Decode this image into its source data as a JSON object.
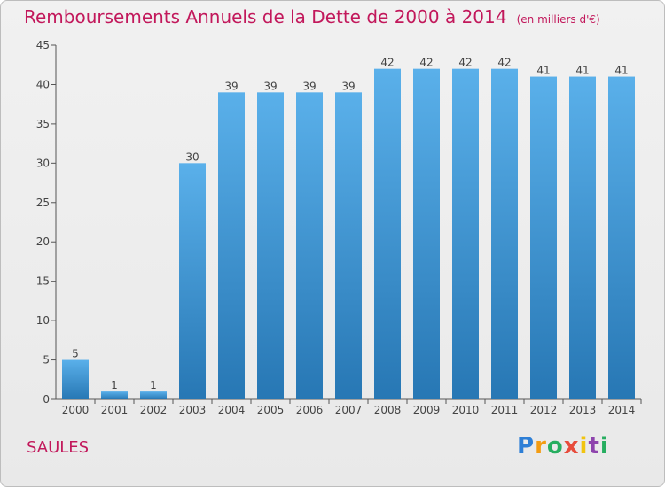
{
  "title": "Remboursements Annuels de la Dette de 2000 à 2014",
  "unit": "(en milliers d'€)",
  "place": "SAULES",
  "logo": {
    "letters": [
      "P",
      "r",
      "o",
      "x",
      "i",
      "t",
      "i"
    ],
    "colors": [
      "#2e7fd6",
      "#f39c12",
      "#27ae60",
      "#e74c3c",
      "#f1c40f",
      "#8e44ad",
      "#27ae60"
    ]
  },
  "colors": {
    "title": "#c2185b",
    "bar_top": "#5ab0ea",
    "bar_bottom": "#2777b4",
    "axis": "#555555"
  },
  "chart_data": {
    "type": "bar",
    "categories": [
      "2000",
      "2001",
      "2002",
      "2003",
      "2004",
      "2005",
      "2006",
      "2007",
      "2008",
      "2009",
      "2010",
      "2011",
      "2012",
      "2013",
      "2014"
    ],
    "values": [
      5,
      1,
      1,
      30,
      39,
      39,
      39,
      39,
      42,
      42,
      42,
      42,
      41,
      41,
      41
    ],
    "ylim": [
      0,
      45
    ],
    "yticks": [
      0,
      5,
      10,
      15,
      20,
      25,
      30,
      35,
      40,
      45
    ],
    "grid": false,
    "xlabel": "",
    "ylabel": ""
  }
}
